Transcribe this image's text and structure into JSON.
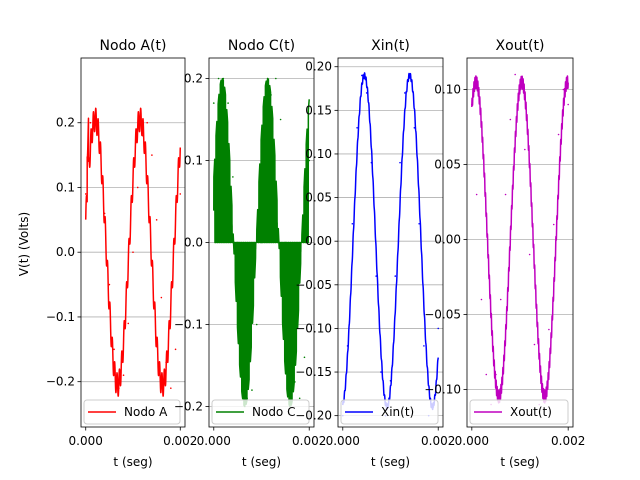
{
  "figure": {
    "ylabel": "V(t) (Volts)"
  },
  "chart_data": [
    {
      "type": "line",
      "title": "Nodo A(t)",
      "xlabel": "t (seg)",
      "xlim": [
        -0.0001,
        0.0021
      ],
      "ylim": [
        -0.27,
        0.3
      ],
      "xticks": [
        0,
        0.002
      ],
      "xticklabels": [
        "0.000",
        "0.002"
      ],
      "yticks": [
        0.2,
        0.1,
        0.0,
        -0.1,
        -0.2
      ],
      "yticklabels": [
        "0.2",
        "0.1",
        "0.0",
        "−0.1",
        "−0.2"
      ],
      "grid": "y",
      "legend": {
        "location": "lower-left"
      },
      "series": [
        {
          "name": "Nodo A",
          "color": "#ff0000",
          "kind": "nodoA",
          "x": [
            0,
            0.0001,
            0.0002,
            0.0003,
            0.0004,
            0.0005,
            0.0006,
            0.0007,
            0.0008,
            0.0009,
            0.001,
            0.0011,
            0.0012,
            0.0013,
            0.0014,
            0.0015,
            0.0016,
            0.0017,
            0.0018,
            0.0019,
            0.002
          ],
          "y": [
            0.09,
            0.2,
            0.2,
            0.16,
            0.06,
            -0.05,
            -0.15,
            -0.21,
            -0.19,
            -0.11,
            0.0,
            0.1,
            0.18,
            0.2,
            0.15,
            0.05,
            -0.07,
            -0.17,
            -0.21,
            -0.15,
            0.09
          ]
        }
      ]
    },
    {
      "type": "line",
      "title": "Nodo C(t)",
      "xlabel": "t (seg)",
      "xlim": [
        -0.0001,
        0.0021
      ],
      "ylim": [
        -0.225,
        0.225
      ],
      "xticks": [
        0,
        0.002
      ],
      "xticklabels": [
        "0.000",
        "0.002"
      ],
      "yticks": [
        0.2,
        0.1,
        0.0,
        -0.1,
        -0.2
      ],
      "yticklabels": [
        "0.2",
        "0.1",
        "0.0",
        "−0.1",
        "−0.2"
      ],
      "grid": "y",
      "legend": {
        "location": "lower-left"
      },
      "series": [
        {
          "name": "Nodo C",
          "color": "#008000",
          "kind": "nodoC",
          "x": [
            0,
            0.0001,
            0.0002,
            0.0003,
            0.0004,
            0.0005,
            0.0006,
            0.0007,
            0.0008,
            0.0009,
            0.001,
            0.0011,
            0.0012,
            0.0013,
            0.0014,
            0.0015,
            0.0016,
            0.0017,
            0.0018,
            0.0019,
            0.002
          ],
          "y": [
            0.17,
            0.2,
            0.2,
            0.17,
            0.08,
            0.0,
            -0.14,
            -0.19,
            -0.18,
            -0.1,
            0.0,
            0.1,
            0.18,
            0.2,
            0.15,
            0.0,
            -0.1,
            -0.17,
            -0.19,
            -0.14,
            0.1
          ]
        }
      ]
    },
    {
      "type": "line",
      "title": "Xin(t)",
      "xlabel": "t (seg)",
      "xlim": [
        -0.0001,
        0.0021
      ],
      "ylim": [
        -0.213,
        0.21
      ],
      "xticks": [
        0,
        0.002
      ],
      "xticklabels": [
        "0.000",
        "0.002"
      ],
      "yticks": [
        0.2,
        0.15,
        0.1,
        0.05,
        0.0,
        -0.05,
        -0.1,
        -0.15,
        -0.2
      ],
      "yticklabels": [
        "0.20",
        "0.15",
        "0.10",
        "0.05",
        "0.00",
        "−0.05",
        "−0.10",
        "−0.15",
        "−0.20"
      ],
      "grid": "y",
      "legend": {
        "location": "lower-left"
      },
      "series": [
        {
          "name": "Xin(t)",
          "color": "#0000ff",
          "kind": "xin",
          "x": [
            0,
            0.0001,
            0.0002,
            0.0003,
            0.0004,
            0.0005,
            0.0006,
            0.0007,
            0.0008,
            0.0009,
            0.001,
            0.0011,
            0.0012,
            0.0013,
            0.0014,
            0.0015,
            0.0016,
            0.0017,
            0.0018,
            0.0019,
            0.002
          ],
          "y": [
            -0.2,
            -0.12,
            0.02,
            0.13,
            0.19,
            0.17,
            0.09,
            -0.04,
            -0.15,
            -0.2,
            -0.16,
            -0.04,
            0.09,
            0.17,
            0.19,
            0.13,
            0.02,
            -0.12,
            -0.2,
            -0.19,
            -0.1
          ]
        }
      ]
    },
    {
      "type": "line",
      "title": "Xout(t)",
      "xlabel": "t (seg)",
      "xlim": [
        -0.0001,
        0.0021
      ],
      "ylim": [
        -0.125,
        0.121
      ],
      "xticks": [
        0,
        0.002
      ],
      "xticklabels": [
        "0.000",
        "0.002"
      ],
      "yticks": [
        0.1,
        0.05,
        0.0,
        -0.05,
        -0.1
      ],
      "yticklabels": [
        "0.10",
        "0.05",
        "0.00",
        "−0.05",
        "−0.10"
      ],
      "grid": "y",
      "legend": {
        "location": "lower-left"
      },
      "series": [
        {
          "name": "Xout(t)",
          "color": "#bf00bf",
          "kind": "xout",
          "x": [
            0,
            0.0001,
            0.0002,
            0.0003,
            0.0004,
            0.0005,
            0.0006,
            0.0007,
            0.0008,
            0.0009,
            0.001,
            0.0011,
            0.0012,
            0.0013,
            0.0014,
            0.0015,
            0.0016,
            0.0017,
            0.0018,
            0.0019,
            0.002
          ],
          "y": [
            0.09,
            0.03,
            -0.04,
            -0.09,
            -0.11,
            -0.09,
            -0.04,
            0.03,
            0.08,
            0.11,
            0.1,
            0.06,
            -0.01,
            -0.07,
            -0.11,
            -0.1,
            -0.06,
            0.01,
            0.07,
            0.1,
            0.09
          ]
        }
      ]
    }
  ]
}
